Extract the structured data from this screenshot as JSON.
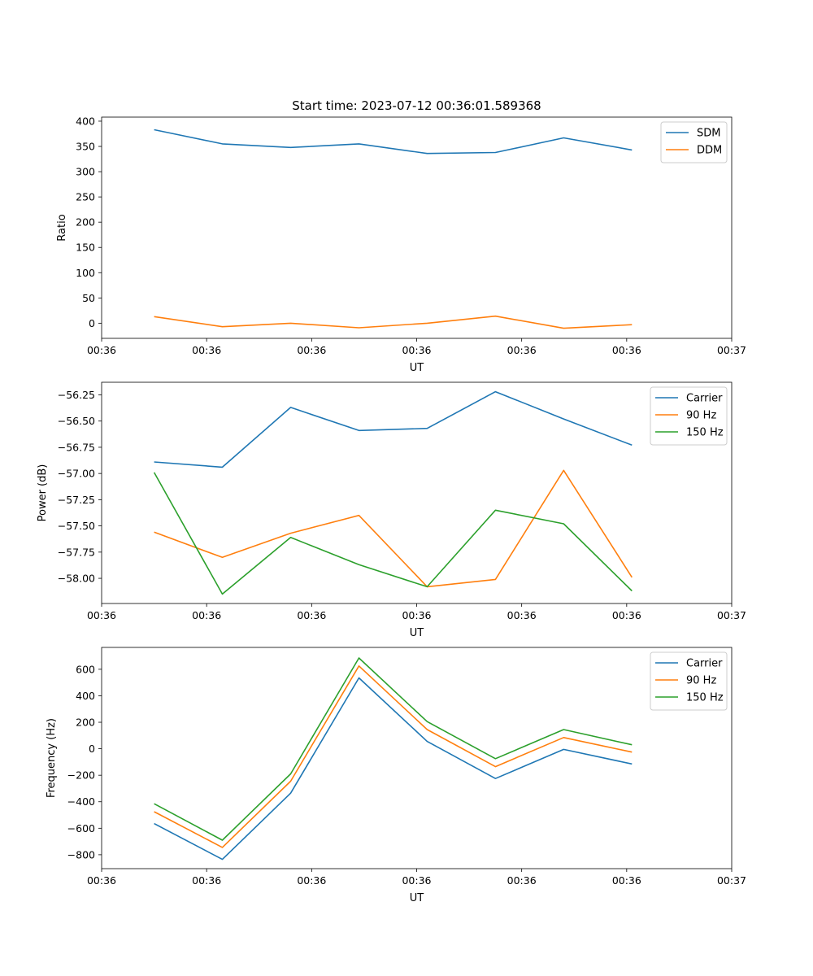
{
  "figure_title": "Start time: 2023-07-12 00:36:01.589368",
  "colors": {
    "blue": "#1f77b4",
    "orange": "#ff7f0e",
    "green": "#2ca02c"
  },
  "chart_data": [
    {
      "type": "line",
      "title": "Start time: 2023-07-12 00:36:01.589368",
      "xlabel": "UT",
      "ylabel": "Ratio",
      "xlim": [
        0,
        6
      ],
      "ylim": [
        -30,
        408
      ],
      "x": [
        0.5,
        1.15,
        1.8,
        2.45,
        3.1,
        3.75,
        4.4,
        5.05
      ],
      "x_ticks": [
        0.0,
        1.0,
        2.0,
        3.0,
        4.0,
        5.0,
        6.0
      ],
      "x_tick_labels": [
        "00:36",
        "00:36",
        "00:36",
        "00:36",
        "00:36",
        "00:36",
        "00:37"
      ],
      "y_ticks": [
        0,
        50,
        100,
        150,
        200,
        250,
        300,
        350,
        400
      ],
      "y_tick_labels": [
        "0",
        "50",
        "100",
        "150",
        "200",
        "250",
        "300",
        "350",
        "400"
      ],
      "legend_position": "top-right",
      "series": [
        {
          "name": "SDM",
          "color": "#1f77b4",
          "values": [
            383,
            355,
            348,
            355,
            336,
            338,
            367,
            343
          ]
        },
        {
          "name": "DDM",
          "color": "#ff7f0e",
          "values": [
            13,
            -7,
            0,
            -9,
            0,
            14,
            -10,
            -3
          ]
        }
      ]
    },
    {
      "type": "line",
      "title": "",
      "xlabel": "UT",
      "ylabel": "Power (dB)",
      "xlim": [
        0,
        6
      ],
      "ylim": [
        -58.24,
        -56.13
      ],
      "x": [
        0.5,
        1.15,
        1.8,
        2.45,
        3.1,
        3.75,
        4.4,
        5.05
      ],
      "x_ticks": [
        0.0,
        1.0,
        2.0,
        3.0,
        4.0,
        5.0,
        6.0
      ],
      "x_tick_labels": [
        "00:36",
        "00:36",
        "00:36",
        "00:36",
        "00:36",
        "00:36",
        "00:37"
      ],
      "y_ticks": [
        -58.0,
        -57.75,
        -57.5,
        -57.25,
        -57.0,
        -56.75,
        -56.5,
        -56.25
      ],
      "y_tick_labels": [
        "−58.00",
        "−57.75",
        "−57.50",
        "−57.25",
        "−57.00",
        "−56.75",
        "−56.50",
        "−56.25"
      ],
      "legend_position": "top-right",
      "series": [
        {
          "name": "Carrier",
          "color": "#1f77b4",
          "values": [
            -56.89,
            -56.94,
            -56.37,
            -56.59,
            -56.57,
            -56.22,
            -56.48,
            -56.73
          ]
        },
        {
          "name": "90 Hz",
          "color": "#ff7f0e",
          "values": [
            -57.56,
            -57.8,
            -57.57,
            -57.4,
            -58.08,
            -58.01,
            -56.97,
            -57.99
          ]
        },
        {
          "name": "150 Hz",
          "color": "#2ca02c",
          "values": [
            -56.99,
            -58.15,
            -57.61,
            -57.87,
            -58.08,
            -57.35,
            -57.48,
            -58.12
          ]
        }
      ]
    },
    {
      "type": "line",
      "title": "",
      "xlabel": "UT",
      "ylabel": "Frequency (Hz)",
      "xlim": [
        0,
        6
      ],
      "ylim": [
        -905,
        765
      ],
      "x": [
        0.5,
        1.15,
        1.8,
        2.45,
        3.1,
        3.75,
        4.4,
        5.05
      ],
      "x_ticks": [
        0.0,
        1.0,
        2.0,
        3.0,
        4.0,
        5.0,
        6.0
      ],
      "x_tick_labels": [
        "00:36",
        "00:36",
        "00:36",
        "00:36",
        "00:36",
        "00:36",
        "00:37"
      ],
      "y_ticks": [
        -800,
        -600,
        -400,
        -200,
        0,
        200,
        400,
        600
      ],
      "y_tick_labels": [
        "−800",
        "−600",
        "−400",
        "−200",
        "0",
        "200",
        "400",
        "600"
      ],
      "legend_position": "top-right",
      "series": [
        {
          "name": "Carrier",
          "color": "#1f77b4",
          "values": [
            -565,
            -835,
            -335,
            535,
            55,
            -225,
            -5,
            -115
          ]
        },
        {
          "name": "90 Hz",
          "color": "#ff7f0e",
          "values": [
            -475,
            -745,
            -245,
            625,
            145,
            -135,
            85,
            -25
          ]
        },
        {
          "name": "150 Hz",
          "color": "#2ca02c",
          "values": [
            -415,
            -690,
            -190,
            685,
            205,
            -75,
            145,
            30
          ]
        }
      ]
    }
  ]
}
